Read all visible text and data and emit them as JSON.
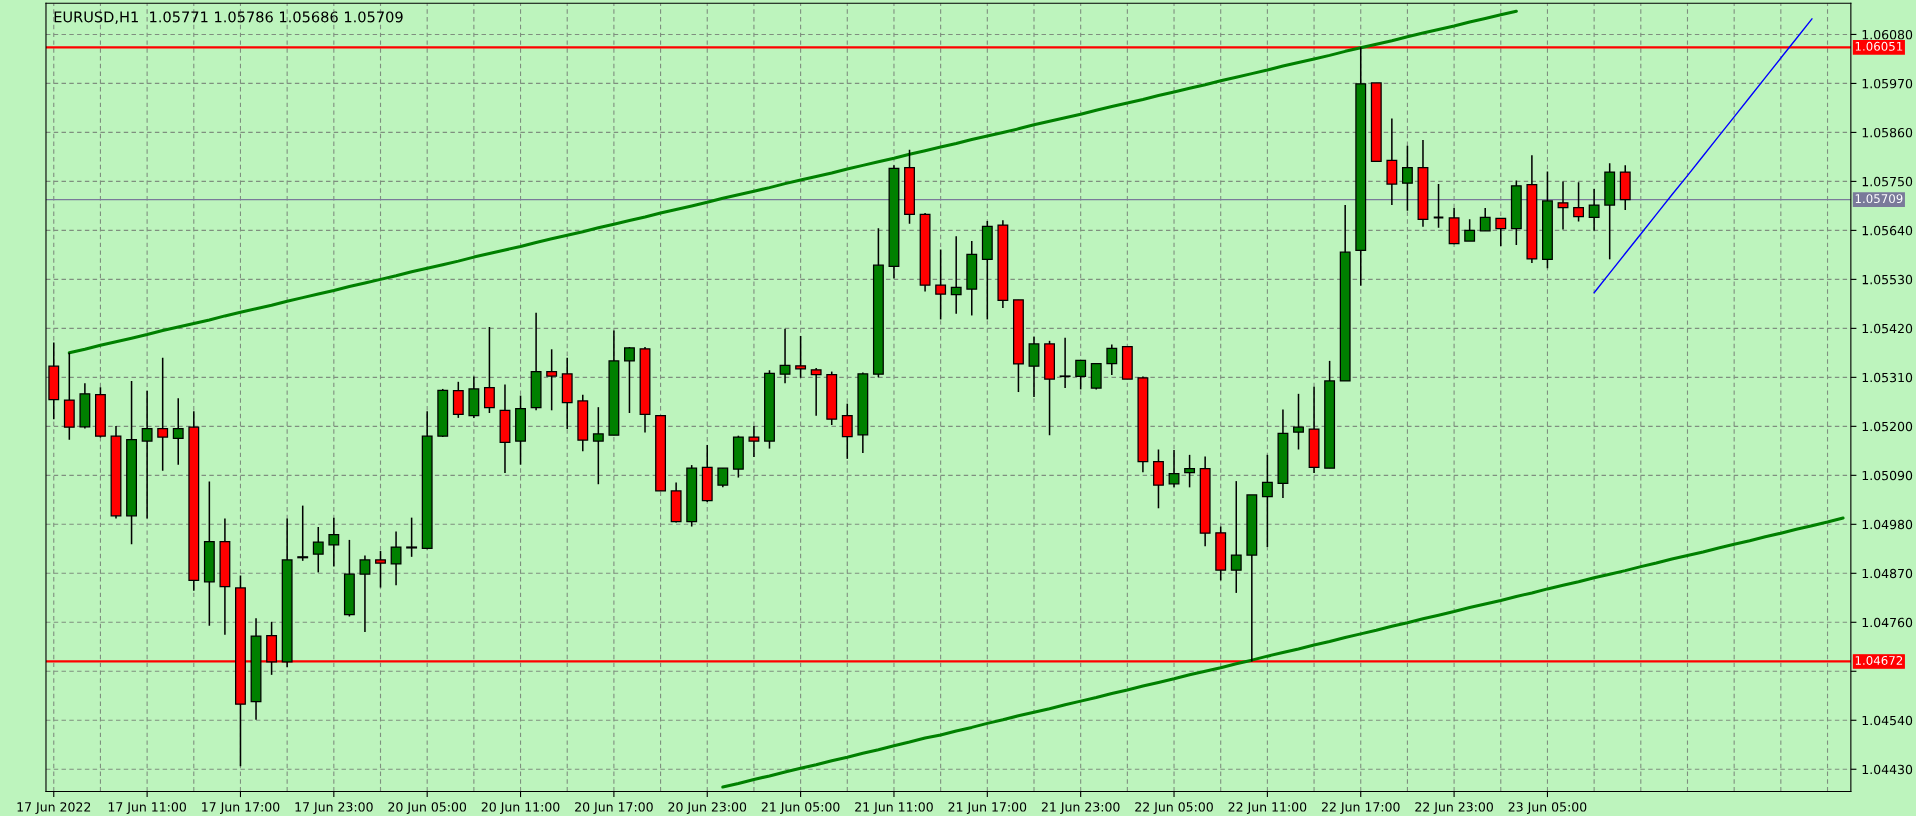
{
  "chart_data": {
    "type": "candlestick",
    "title": "EURUSD,H1  1.05771 1.05786 1.05686 1.05709",
    "categories": [
      "17 Jun 2022",
      null,
      null,
      null,
      null,
      null,
      "17 Jun 11:00",
      null,
      null,
      null,
      null,
      null,
      "17 Jun 17:00",
      null,
      null,
      null,
      null,
      null,
      "17 Jun 23:00",
      null,
      null,
      null,
      null,
      null,
      "20 Jun 05:00",
      null,
      null,
      null,
      null,
      null,
      "20 Jun 11:00",
      null,
      null,
      null,
      null,
      null,
      "20 Jun 17:00",
      null,
      null,
      null,
      null,
      null,
      "20 Jun 23:00",
      null,
      null,
      null,
      null,
      null,
      "21 Jun 05:00",
      null,
      null,
      null,
      null,
      null,
      "21 Jun 11:00",
      null,
      null,
      null,
      null,
      null,
      "21 Jun 17:00",
      null,
      null,
      null,
      null,
      null,
      "21 Jun 23:00",
      null,
      null,
      null,
      null,
      null,
      "22 Jun 05:00",
      null,
      null,
      null,
      null,
      null,
      "22 Jun 11:00",
      null,
      null,
      null,
      null,
      null,
      "22 Jun 17:00",
      null,
      null,
      null,
      null,
      null,
      "22 Jun 23:00",
      null,
      null,
      null,
      null,
      null,
      "23 Jun 05:00",
      null,
      null,
      null,
      null,
      null,
      null,
      null,
      null,
      null,
      null,
      null,
      null,
      null,
      null,
      null,
      null,
      null,
      null,
      null
    ],
    "colors": [
      "#ff0000",
      "#ff0000",
      "#008000",
      "#ff0000",
      "#ff0000",
      "#008000",
      "#008000",
      "#ff0000",
      "#008000",
      "#ff0000",
      "#008000",
      "#ff0000",
      "#ff0000",
      "#008000",
      "#ff0000",
      "#008000",
      "#008000",
      "#008000",
      "#008000",
      "#008000",
      "#008000",
      "#ff0000",
      "#008000",
      "#008000",
      "#008000",
      "#008000",
      "#ff0000",
      "#008000",
      "#ff0000",
      "#ff0000",
      "#008000",
      "#008000",
      "#ff0000",
      "#ff0000",
      "#ff0000",
      "#008000",
      "#008000",
      "#008000",
      "#ff0000",
      "#ff0000",
      "#ff0000",
      "#008000",
      "#ff0000",
      "#008000",
      "#008000",
      "#ff0000",
      "#008000",
      "#008000",
      "#ff0000",
      "#ff0000",
      "#ff0000",
      "#ff0000",
      "#008000",
      "#008000",
      "#008000",
      "#ff0000",
      "#ff0000",
      "#ff0000",
      "#008000",
      "#008000",
      "#008000",
      "#ff0000",
      "#ff0000",
      "#008000",
      "#ff0000",
      "#ff0000",
      "#008000",
      "#008000",
      "#008000",
      "#ff0000",
      "#ff0000",
      "#ff0000",
      "#008000",
      "#008000",
      "#ff0000",
      "#ff0000",
      "#008000",
      "#008000",
      "#008000",
      "#008000",
      "#008000",
      "#ff0000",
      "#008000",
      "#008000",
      "#008000",
      "#ff0000",
      "#ff0000",
      "#008000",
      "#ff0000",
      "#000000",
      "#ff0000",
      "#008000",
      "#008000",
      "#ff0000",
      "#008000",
      "#ff0000",
      "#008000",
      "#ff0000",
      "#ff0000",
      "#008000",
      "#008000",
      "#ff0000",
      null,
      null,
      null,
      null,
      null,
      null,
      null,
      null,
      null,
      null,
      null,
      null,
      null,
      null
    ],
    "ohlc": [
      [
        1.05335,
        1.05388,
        1.05216,
        1.0526
      ],
      [
        1.05259,
        1.05365,
        1.0517,
        1.05198
      ],
      [
        1.05199,
        1.05297,
        1.05195,
        1.05273
      ],
      [
        1.05271,
        1.05288,
        1.05175,
        1.05178
      ],
      [
        1.05178,
        1.05201,
        1.04993,
        1.04999
      ],
      [
        1.04999,
        1.05302,
        1.04935,
        1.0517
      ],
      [
        1.05167,
        1.0528,
        1.04993,
        1.05195
      ],
      [
        1.05195,
        1.05354,
        1.051,
        1.05176
      ],
      [
        1.05173,
        1.05263,
        1.05114,
        1.05195
      ],
      [
        1.05198,
        1.05234,
        1.04831,
        1.04854
      ],
      [
        1.04851,
        1.05076,
        1.04752,
        1.04941
      ],
      [
        1.04941,
        1.04993,
        1.04732,
        1.0484
      ],
      [
        1.04837,
        1.04865,
        1.04437,
        1.04576
      ],
      [
        1.04582,
        1.04769,
        1.04541,
        1.04729
      ],
      [
        1.0473,
        1.04761,
        1.04642,
        1.04671
      ],
      [
        1.04671,
        1.04993,
        1.04659,
        1.049
      ],
      [
        1.04905,
        1.05022,
        1.04898,
        1.04907
      ],
      [
        1.04913,
        1.04974,
        1.04872,
        1.0494
      ],
      [
        1.04934,
        1.04995,
        1.04885,
        1.04957
      ],
      [
        1.04777,
        1.04945,
        1.04773,
        1.04868
      ],
      [
        1.04868,
        1.0491,
        1.04738,
        1.049
      ],
      [
        1.049,
        1.0492,
        1.04838,
        1.04893
      ],
      [
        1.04891,
        1.04964,
        1.04843,
        1.04929
      ],
      [
        1.04927,
        1.04995,
        1.04907,
        1.04929
      ],
      [
        1.04926,
        1.05234,
        1.04924,
        1.05178
      ],
      [
        1.05178,
        1.05284,
        1.05176,
        1.05281
      ],
      [
        1.0528,
        1.053,
        1.05219,
        1.05227
      ],
      [
        1.05224,
        1.05312,
        1.05219,
        1.05284
      ],
      [
        1.05287,
        1.05423,
        1.0523,
        1.05242
      ],
      [
        1.05236,
        1.05294,
        1.05095,
        1.05164
      ],
      [
        1.05167,
        1.05269,
        1.05114,
        1.0524
      ],
      [
        1.05242,
        1.05455,
        1.05236,
        1.05323
      ],
      [
        1.05323,
        1.05373,
        1.05236,
        1.05313
      ],
      [
        1.05318,
        1.05354,
        1.05194,
        1.05253
      ],
      [
        1.05257,
        1.05271,
        1.05144,
        1.05169
      ],
      [
        1.05167,
        1.05243,
        1.0507,
        1.05183
      ],
      [
        1.0518,
        1.05415,
        1.0518,
        1.05347
      ],
      [
        1.05347,
        1.05378,
        1.0523,
        1.05376
      ],
      [
        1.05374,
        1.05378,
        1.05186,
        1.05227
      ],
      [
        1.05224,
        1.05224,
        1.05055,
        1.05055
      ],
      [
        1.05055,
        1.05074,
        1.04984,
        1.04986
      ],
      [
        1.04986,
        1.05113,
        1.04975,
        1.05106
      ],
      [
        1.05108,
        1.05158,
        1.0503,
        1.05033
      ],
      [
        1.05068,
        1.05106,
        1.05063,
        1.05106
      ],
      [
        1.05104,
        1.05179,
        1.05085,
        1.05176
      ],
      [
        1.05176,
        1.05201,
        1.05131,
        1.05167
      ],
      [
        1.05167,
        1.05326,
        1.0515,
        1.05319
      ],
      [
        1.05317,
        1.05419,
        1.05297,
        1.05337
      ],
      [
        1.05336,
        1.05403,
        1.05309,
        1.05329
      ],
      [
        1.05327,
        1.05331,
        1.05224,
        1.05316
      ],
      [
        1.05316,
        1.05323,
        1.05203,
        1.05216
      ],
      [
        1.05224,
        1.05251,
        1.05127,
        1.05177
      ],
      [
        1.05181,
        1.05321,
        1.0514,
        1.05318
      ],
      [
        1.05317,
        1.05645,
        1.0531,
        1.05562
      ],
      [
        1.05559,
        1.05786,
        1.05532,
        1.05779
      ],
      [
        1.05781,
        1.05821,
        1.05655,
        1.05676
      ],
      [
        1.05676,
        1.05679,
        1.05503,
        1.05517
      ],
      [
        1.05517,
        1.05597,
        1.0544,
        1.05497
      ],
      [
        1.05496,
        1.05627,
        1.05453,
        1.05512
      ],
      [
        1.05508,
        1.05616,
        1.05449,
        1.05586
      ],
      [
        1.05575,
        1.05661,
        1.0544,
        1.05649
      ],
      [
        1.05652,
        1.05663,
        1.05466,
        1.05483
      ],
      [
        1.05484,
        1.05484,
        1.05277,
        1.0534
      ],
      [
        1.05335,
        1.05401,
        1.05266,
        1.05385
      ],
      [
        1.05385,
        1.05392,
        1.0518,
        1.05306
      ],
      [
        1.05313,
        1.05399,
        1.05286,
        1.05312
      ],
      [
        1.05312,
        1.05348,
        1.05283,
        1.05348
      ],
      [
        1.05286,
        1.05341,
        1.05283,
        1.05341
      ],
      [
        1.05341,
        1.05384,
        1.05315,
        1.05375
      ],
      [
        1.05379,
        1.05379,
        1.05306,
        1.05306
      ],
      [
        1.05309,
        1.05312,
        1.05097,
        1.05121
      ],
      [
        1.05121,
        1.05148,
        1.05016,
        1.05068
      ],
      [
        1.05071,
        1.05147,
        1.05063,
        1.05094
      ],
      [
        1.05096,
        1.05136,
        1.05063,
        1.05105
      ],
      [
        1.05105,
        1.05132,
        1.04931,
        1.0496
      ],
      [
        1.04961,
        1.04975,
        1.04854,
        1.04877
      ],
      [
        1.04877,
        1.05077,
        1.04826,
        1.04911
      ],
      [
        1.04911,
        1.05046,
        1.04672,
        1.05046
      ],
      [
        1.05042,
        1.05136,
        1.04929,
        1.05074
      ],
      [
        1.05072,
        1.05238,
        1.05039,
        1.05184
      ],
      [
        1.05187,
        1.05273,
        1.05148,
        1.05198
      ],
      [
        1.05194,
        1.05289,
        1.05095,
        1.05108
      ],
      [
        1.05106,
        1.05347,
        1.05106,
        1.05302
      ],
      [
        1.05302,
        1.05697,
        1.05302,
        1.05591
      ],
      [
        1.05595,
        1.06051,
        1.05516,
        1.05969
      ],
      [
        1.05971,
        1.05971,
        1.05795,
        1.05795
      ],
      [
        1.05797,
        1.05891,
        1.05697,
        1.05744
      ],
      [
        1.05746,
        1.0583,
        1.05684,
        1.05781
      ],
      [
        1.05781,
        1.05843,
        1.05648,
        1.05665
      ],
      [
        1.05669,
        1.05744,
        1.05646,
        1.05669
      ],
      [
        1.05668,
        1.0569,
        1.05609,
        1.0561
      ],
      [
        1.05616,
        1.05665,
        1.05616,
        1.0564
      ],
      [
        1.05639,
        1.0569,
        1.05639,
        1.05669
      ],
      [
        1.05667,
        1.05667,
        1.05605,
        1.05644
      ],
      [
        1.05644,
        1.05752,
        1.05607,
        1.0574
      ],
      [
        1.05743,
        1.05809,
        1.05567,
        1.05576
      ],
      [
        1.05575,
        1.05772,
        1.05555,
        1.05706
      ],
      [
        1.05702,
        1.0575,
        1.05642,
        1.05691
      ],
      [
        1.05691,
        1.05748,
        1.0566,
        1.05671
      ],
      [
        1.05669,
        1.05733,
        1.05639,
        1.05697
      ],
      [
        1.05697,
        1.05791,
        1.05575,
        1.05771
      ],
      [
        1.05771,
        1.05786,
        1.05686,
        1.05709
      ],
      null,
      null,
      null,
      null,
      null,
      null,
      null,
      null,
      null,
      null,
      null,
      null,
      null,
      null
    ],
    "series": [
      {
        "type": "line",
        "color": "#008000",
        "values": [
          null,
          1.05365,
          1.05373,
          1.05382,
          1.0539,
          1.05398,
          1.05406,
          1.05415,
          1.05423,
          1.05431,
          1.05439,
          1.05448,
          1.05456,
          1.05464,
          1.05472,
          1.05481,
          1.05489,
          1.05497,
          1.05505,
          1.05514,
          1.05522,
          1.0553,
          1.05538,
          1.05547,
          1.05555,
          1.05563,
          1.05571,
          1.0558,
          1.05588,
          1.05596,
          1.05604,
          1.05613,
          1.05621,
          1.05629,
          1.05637,
          1.05646,
          1.05654,
          1.05662,
          1.0567,
          1.05679,
          1.05687,
          1.05695,
          1.05703,
          1.05712,
          1.0572,
          1.05728,
          1.05736,
          1.05745,
          1.05753,
          1.05761,
          1.05769,
          1.05778,
          1.05786,
          1.05794,
          1.05802,
          1.05811,
          1.05819,
          1.05827,
          1.05835,
          1.05844,
          1.05852,
          1.0586,
          1.05868,
          1.05877,
          1.05885,
          1.05893,
          1.05901,
          1.0591,
          1.05918,
          1.05926,
          1.05934,
          1.05943,
          1.05951,
          1.05959,
          1.05967,
          1.05976,
          1.05984,
          1.05992,
          1.06,
          1.06009,
          1.06017,
          1.06025,
          1.06033,
          1.06042,
          1.0605,
          1.06058,
          1.06066,
          1.06075,
          1.06083,
          1.06091,
          1.06099,
          1.06108,
          1.06116,
          1.06124,
          1.06132,
          null,
          null,
          null,
          null,
          null,
          null,
          null,
          null,
          null,
          null,
          null,
          null,
          null,
          null,
          null,
          null,
          null,
          null,
          null,
          null,
          null
        ]
      },
      {
        "type": "line",
        "color": "#008000",
        "values": [
          null,
          null,
          null,
          null,
          null,
          null,
          null,
          null,
          null,
          null,
          null,
          null,
          null,
          null,
          null,
          null,
          null,
          null,
          null,
          null,
          null,
          null,
          null,
          null,
          null,
          null,
          null,
          null,
          null,
          null,
          null,
          null,
          null,
          null,
          null,
          null,
          null,
          null,
          null,
          null,
          null,
          null,
          null,
          1.0439,
          1.04398,
          1.04407,
          1.04415,
          1.04424,
          1.04432,
          1.0444,
          1.04449,
          1.04457,
          1.04466,
          1.04474,
          1.04483,
          1.04491,
          1.045,
          1.04507,
          1.04516,
          1.04524,
          1.04533,
          1.04541,
          1.0455,
          1.04558,
          1.04566,
          1.04575,
          1.04583,
          1.04591,
          1.046,
          1.04608,
          1.04617,
          1.04625,
          1.04633,
          1.04642,
          1.0465,
          1.04658,
          1.04667,
          1.04675,
          1.04684,
          1.04692,
          1.047,
          1.04709,
          1.04717,
          1.04726,
          1.04734,
          1.04742,
          1.04751,
          1.04759,
          1.04768,
          1.04776,
          1.04784,
          1.04793,
          1.04801,
          1.04809,
          1.04818,
          1.04826,
          1.04835,
          1.04843,
          1.04851,
          1.0486,
          1.04868,
          1.04876,
          1.04885,
          1.04893,
          1.04902,
          1.0491,
          1.04918,
          1.04927,
          1.04935,
          1.04943,
          1.04952,
          1.0496,
          1.04969,
          1.04977,
          1.04985,
          1.04994
        ]
      },
      {
        "type": "line",
        "color": "#0000ff",
        "values": [
          null,
          null,
          null,
          null,
          null,
          null,
          null,
          null,
          null,
          null,
          null,
          null,
          null,
          null,
          null,
          null,
          null,
          null,
          null,
          null,
          null,
          null,
          null,
          null,
          null,
          null,
          null,
          null,
          null,
          null,
          null,
          null,
          null,
          null,
          null,
          null,
          null,
          null,
          null,
          null,
          null,
          null,
          null,
          null,
          null,
          null,
          null,
          null,
          null,
          null,
          null,
          null,
          null,
          null,
          null,
          null,
          null,
          null,
          null,
          null,
          null,
          null,
          null,
          null,
          null,
          null,
          null,
          null,
          null,
          null,
          null,
          null,
          null,
          null,
          null,
          null,
          null,
          null,
          null,
          null,
          null,
          null,
          null,
          null,
          null,
          null,
          null,
          null,
          null,
          null,
          null,
          null,
          null,
          null,
          null,
          null,
          null,
          null,
          null,
          1.055,
          1.05544,
          1.05588,
          1.05632,
          1.05676,
          1.0572,
          1.05763,
          1.05807,
          1.05851,
          1.05895,
          1.05939,
          1.05983,
          1.06027,
          1.06071,
          1.06115,
          null,
          null
        ]
      }
    ],
    "ref_lines": [
      {
        "axis": "y",
        "value": 1.06051,
        "label": "1.06051",
        "color": "#ff0000"
      },
      {
        "axis": "y",
        "value": 1.04672,
        "label": "1.04672",
        "color": "#ff0000"
      },
      {
        "axis": "y",
        "value": 1.05709,
        "label": "1.05709",
        "color": "#7a7a9a"
      }
    ],
    "ylim": [
      1.0438,
      1.0615
    ],
    "yticks": [
      {
        "value": 1.0608,
        "label": "1.06080"
      },
      {
        "value": 1.0597,
        "label": "1.05970"
      },
      {
        "value": 1.0586,
        "label": "1.05860"
      },
      {
        "value": 1.0575,
        "label": "1.05750"
      },
      {
        "value": 1.0564,
        "label": "1.05640"
      },
      {
        "value": 1.0553,
        "label": "1.05530"
      },
      {
        "value": 1.0542,
        "label": "1.05420"
      },
      {
        "value": 1.0531,
        "label": "1.05310"
      },
      {
        "value": 1.052,
        "label": "1.05200"
      },
      {
        "value": 1.0509,
        "label": "1.05090"
      },
      {
        "value": 1.0498,
        "label": "1.04980"
      },
      {
        "value": 1.0487,
        "label": "1.04870"
      },
      {
        "value": 1.0476,
        "label": "1.04760"
      },
      {
        "value": 1.0465,
        "label": null
      },
      {
        "value": 1.0454,
        "label": "1.04540"
      },
      {
        "value": 1.0443,
        "label": "1.04430"
      }
    ],
    "grid": true
  }
}
